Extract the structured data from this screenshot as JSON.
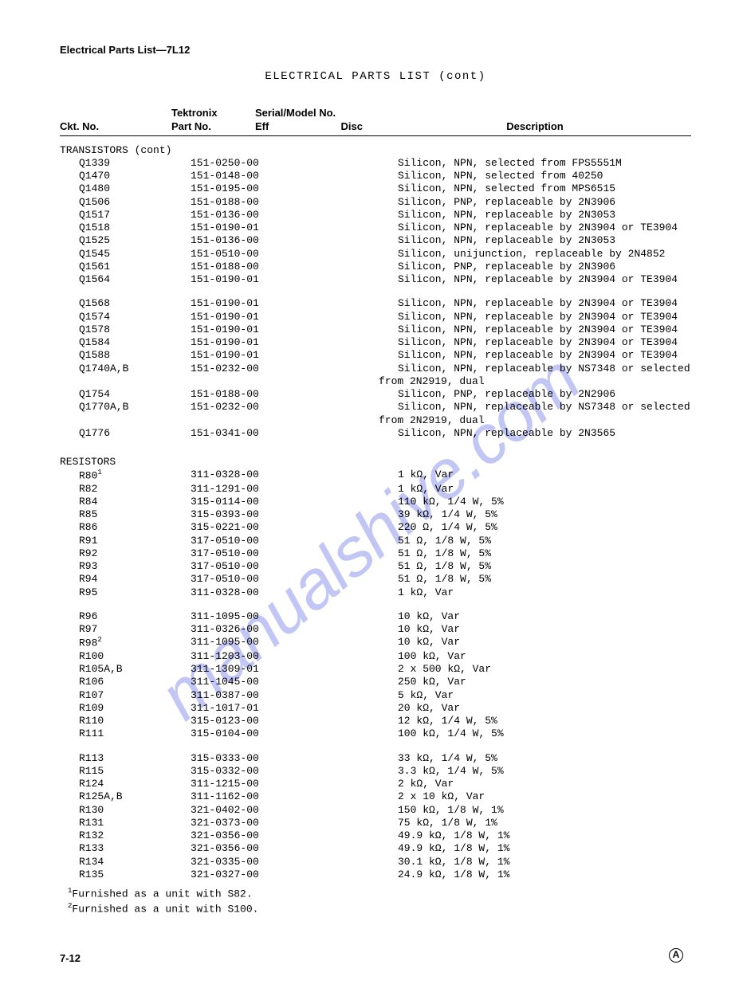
{
  "header": "Electrical Parts List—7L12",
  "title": "ELECTRICAL PARTS LIST   (cont)",
  "watermark": "manualshive.com",
  "colHeaders": {
    "ckt": "Ckt. No.",
    "tekTop": "Tektronix",
    "tekBot": "Part No.",
    "serialTop": "Serial/Model No.",
    "eff": "Eff",
    "disc": "Disc",
    "desc": "Description"
  },
  "sections": [
    {
      "name": "TRANSISTORS  (cont)",
      "groups": [
        [
          {
            "ckt": "Q1339",
            "part": "151-0250-00",
            "desc": "Silicon, NPN, selected from FPS5551M"
          },
          {
            "ckt": "Q1470",
            "part": "151-0148-00",
            "desc": "Silicon, NPN, selected from 40250"
          },
          {
            "ckt": "Q1480",
            "part": "151-0195-00",
            "desc": "Silicon, NPN, selected from MPS6515"
          },
          {
            "ckt": "Q1506",
            "part": "151-0188-00",
            "desc": "Silicon, PNP, replaceable by 2N3906"
          },
          {
            "ckt": "Q1517",
            "part": "151-0136-00",
            "desc": "Silicon, NPN, replaceable by 2N3053"
          },
          {
            "ckt": "Q1518",
            "part": "151-0190-01",
            "desc": "Silicon, NPN, replaceable by 2N3904 or TE3904"
          },
          {
            "ckt": "Q1525",
            "part": "151-0136-00",
            "desc": "Silicon, NPN, replaceable by 2N3053"
          },
          {
            "ckt": "Q1545",
            "part": "151-0510-00",
            "desc": "Silicon, unijunction, replaceable by 2N4852"
          },
          {
            "ckt": "Q1561",
            "part": "151-0188-00",
            "desc": "Silicon, PNP, replaceable by 2N3906"
          },
          {
            "ckt": "Q1564",
            "part": "151-0190-01",
            "desc": "Silicon, NPN, replaceable by 2N3904 or TE3904"
          }
        ],
        [
          {
            "ckt": "Q1568",
            "part": "151-0190-01",
            "desc": "Silicon, NPN, replaceable by 2N3904 or TE3904"
          },
          {
            "ckt": "Q1574",
            "part": "151-0190-01",
            "desc": "Silicon, NPN, replaceable by 2N3904 or TE3904"
          },
          {
            "ckt": "Q1578",
            "part": "151-0190-01",
            "desc": "Silicon, NPN, replaceable by 2N3904 or TE3904"
          },
          {
            "ckt": "Q1584",
            "part": "151-0190-01",
            "desc": "Silicon, NPN, replaceable by 2N3904 or TE3904"
          },
          {
            "ckt": "Q1588",
            "part": "151-0190-01",
            "desc": "Silicon, NPN, replaceable by 2N3904 or TE3904"
          },
          {
            "ckt": "Q1740A,B",
            "part": "151-0232-00",
            "desc": "Silicon, NPN, replaceable by NS7348 or selected",
            "cont": "from 2N2919, dual"
          },
          {
            "ckt": "Q1754",
            "part": "151-0188-00",
            "desc": "Silicon, PNP, replaceable by 2N2906"
          },
          {
            "ckt": "Q1770A,B",
            "part": "151-0232-00",
            "desc": "Silicon, NPN, replaceable by NS7348 or selected",
            "cont": "from 2N2919, dual"
          },
          {
            "ckt": "Q1776",
            "part": "151-0341-00",
            "desc": "Silicon, NPN, replaceable by 2N3565"
          }
        ]
      ]
    },
    {
      "name": "RESISTORS",
      "groups": [
        [
          {
            "ckt": "R80",
            "part": "311-0328-00",
            "desc": "1 kΩ, Var",
            "sup": "1"
          },
          {
            "ckt": "R82",
            "part": "311-1291-00",
            "desc": "1 kΩ, Var"
          },
          {
            "ckt": "R84",
            "part": "315-0114-00",
            "desc": "110 kΩ, 1/4 W, 5%"
          },
          {
            "ckt": "R85",
            "part": "315-0393-00",
            "desc": "39 kΩ, 1/4 W, 5%"
          },
          {
            "ckt": "R86",
            "part": "315-0221-00",
            "desc": "220 Ω, 1/4 W, 5%"
          },
          {
            "ckt": "R91",
            "part": "317-0510-00",
            "desc": "51 Ω, 1/8 W, 5%"
          },
          {
            "ckt": "R92",
            "part": "317-0510-00",
            "desc": "51 Ω, 1/8 W, 5%"
          },
          {
            "ckt": "R93",
            "part": "317-0510-00",
            "desc": "51 Ω, 1/8 W, 5%"
          },
          {
            "ckt": "R94",
            "part": "317-0510-00",
            "desc": "51 Ω, 1/8 W, 5%"
          },
          {
            "ckt": "R95",
            "part": "311-0328-00",
            "desc": "1 kΩ, Var"
          }
        ],
        [
          {
            "ckt": "R96",
            "part": "311-1095-00",
            "desc": "10 kΩ, Var"
          },
          {
            "ckt": "R97",
            "part": "311-0326-00",
            "desc": "10 kΩ, Var"
          },
          {
            "ckt": "R98",
            "part": "311-1095-00",
            "desc": "10 kΩ, Var",
            "sup": "2"
          },
          {
            "ckt": "R100",
            "part": "311-1203-00",
            "desc": "100 kΩ, Var"
          },
          {
            "ckt": "R105A,B",
            "part": "311-1309-01",
            "desc": "2 x 500 kΩ, Var"
          },
          {
            "ckt": "R106",
            "part": "311-1045-00",
            "desc": "250 kΩ, Var"
          },
          {
            "ckt": "R107",
            "part": "311-0387-00",
            "desc": "5 kΩ, Var"
          },
          {
            "ckt": "R109",
            "part": "311-1017-01",
            "desc": "20 kΩ, Var"
          },
          {
            "ckt": "R110",
            "part": "315-0123-00",
            "desc": "12 kΩ, 1/4 W, 5%"
          },
          {
            "ckt": "R111",
            "part": "315-0104-00",
            "desc": "100 kΩ, 1/4 W, 5%"
          }
        ],
        [
          {
            "ckt": "R113",
            "part": "315-0333-00",
            "desc": "33 kΩ, 1/4 W, 5%"
          },
          {
            "ckt": "R115",
            "part": "315-0332-00",
            "desc": "3.3 kΩ, 1/4 W, 5%"
          },
          {
            "ckt": "R124",
            "part": "311-1215-00",
            "desc": "2 kΩ, Var"
          },
          {
            "ckt": "R125A,B",
            "part": "311-1162-00",
            "desc": "2 x 10 kΩ, Var"
          },
          {
            "ckt": "R130",
            "part": "321-0402-00",
            "desc": "150 kΩ, 1/8 W, 1%"
          },
          {
            "ckt": "R131",
            "part": "321-0373-00",
            "desc": "75 kΩ, 1/8 W, 1%"
          },
          {
            "ckt": "R132",
            "part": "321-0356-00",
            "desc": "49.9 kΩ, 1/8 W, 1%"
          },
          {
            "ckt": "R133",
            "part": "321-0356-00",
            "desc": "49.9 kΩ, 1/8 W, 1%"
          },
          {
            "ckt": "R134",
            "part": "321-0335-00",
            "desc": "30.1 kΩ, 1/8 W, 1%"
          },
          {
            "ckt": "R135",
            "part": "321-0327-00",
            "desc": "24.9 kΩ, 1/8 W, 1%"
          }
        ]
      ]
    }
  ],
  "footnotes": [
    {
      "num": "1",
      "text": "Furnished as a unit with S82."
    },
    {
      "num": "2",
      "text": "Furnished as a unit with S100."
    }
  ],
  "pageNum": "7-12",
  "circMark": "A"
}
